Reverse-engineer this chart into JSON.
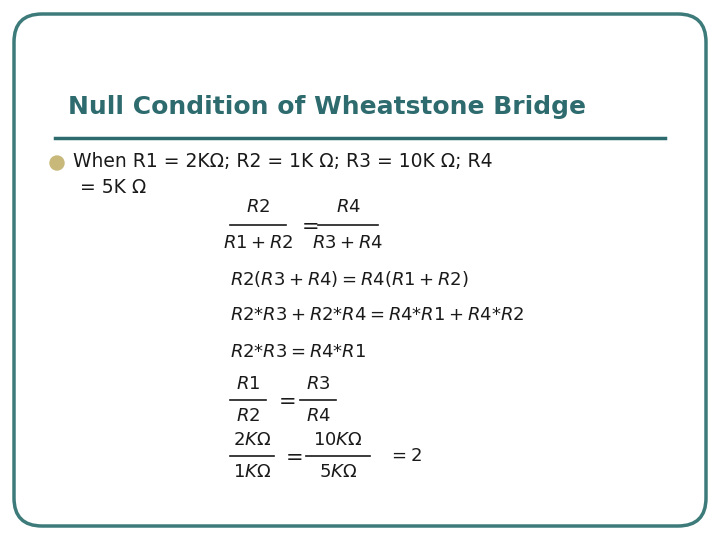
{
  "background_color": "#ffffff",
  "border_color": "#3d7a7a",
  "title": "Null Condition of Wheatstone Bridge",
  "title_color": "#2e6b6e",
  "title_fontsize": 18,
  "bullet_color": "#c8b87a",
  "text_color": "#1a1a1a",
  "line_color": "#2e6b6e",
  "fig_w": 7.2,
  "fig_h": 5.4,
  "dpi": 100
}
